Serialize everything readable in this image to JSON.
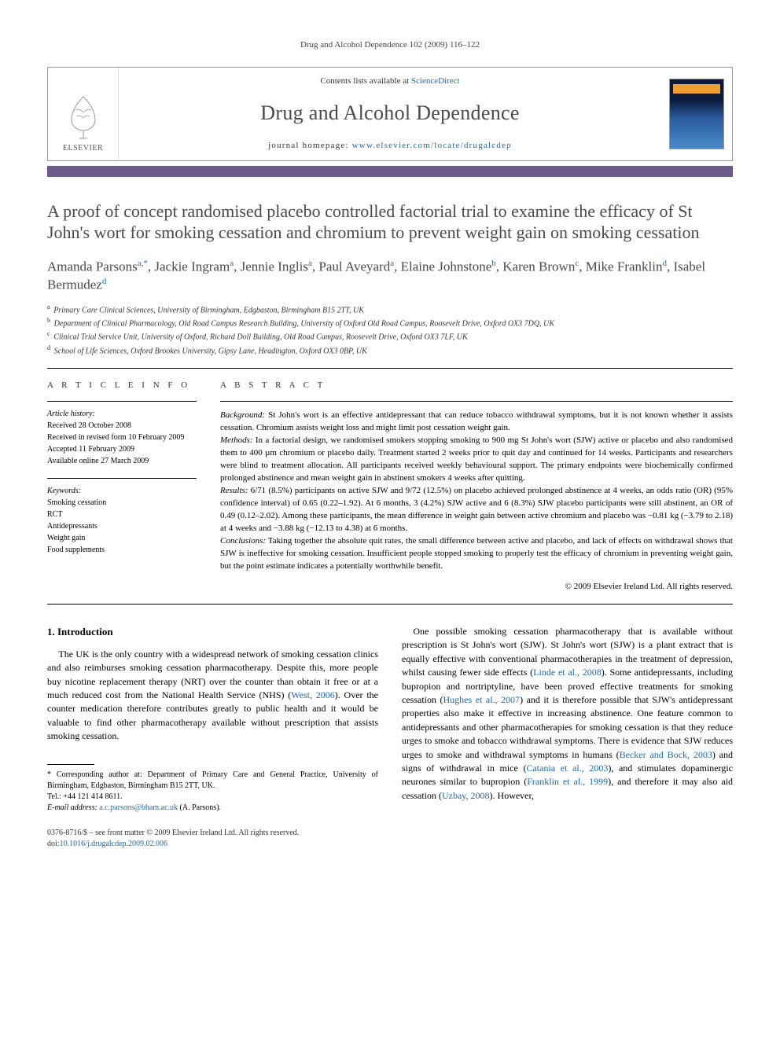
{
  "running_head": "Drug and Alcohol Dependence 102 (2009) 116–122",
  "masthead": {
    "publisher_name": "ELSEVIER",
    "contents_prefix": "Contents lists available at ",
    "contents_link": "ScienceDirect",
    "journal_name": "Drug and Alcohol Dependence",
    "homepage_prefix": "journal homepage: ",
    "homepage_link": "www.elsevier.com/locate/drugalcdep"
  },
  "title": "A proof of concept randomised placebo controlled factorial trial to examine the efficacy of St John's wort for smoking cessation and chromium to prevent weight gain on smoking cessation",
  "authors_html": "Amanda Parsons<sup>a,*</sup>, Jackie Ingram<sup>a</sup>, Jennie Inglis<sup>a</sup>, Paul Aveyard<sup>a</sup>, Elaine Johnstone<sup>b</sup>, Karen Brown<sup>c</sup>, Mike Franklin<sup>d</sup>, Isabel Bermudez<sup>d</sup>",
  "affiliations": [
    {
      "sup": "a",
      "text": "Primary Care Clinical Sciences, University of Birmingham, Edgbaston, Birmingham B15 2TT, UK"
    },
    {
      "sup": "b",
      "text": "Department of Clinical Pharmacology, Old Road Campus Research Building, University of Oxford Old Road Campus, Roosevelt Drive, Oxford OX3 7DQ, UK"
    },
    {
      "sup": "c",
      "text": "Clinical Trial Service Unit, University of Oxford, Richard Doll Building, Old Road Campus, Roosevelt Drive, Oxford OX3 7LF, UK"
    },
    {
      "sup": "d",
      "text": "School of Life Sciences, Oxford Brookes University, Gipsy Lane, Headington, Oxford OX3 0BP, UK"
    }
  ],
  "info": {
    "heading": "A R T I C L E   I N F O",
    "history_label": "Article history:",
    "history": [
      "Received 28 October 2008",
      "Received in revised form 10 February 2009",
      "Accepted 11 February 2009",
      "Available online 27 March 2009"
    ],
    "keywords_label": "Keywords:",
    "keywords": [
      "Smoking cessation",
      "RCT",
      "Antidepressants",
      "Weight gain",
      "Food supplements"
    ]
  },
  "abstract": {
    "heading": "A B S T R A C T",
    "sections": [
      {
        "label": "Background:",
        "text": " St John's wort is an effective antidepressant that can reduce tobacco withdrawal symptoms, but it is not known whether it assists cessation. Chromium assists weight loss and might limit post cessation weight gain."
      },
      {
        "label": "Methods:",
        "text": " In a factorial design, we randomised smokers stopping smoking to 900 mg St John's wort (SJW) active or placebo and also randomised them to 400 µm chromium or placebo daily. Treatment started 2 weeks prior to quit day and continued for 14 weeks. Participants and researchers were blind to treatment allocation. All participants received weekly behavioural support. The primary endpoints were biochemically confirmed prolonged abstinence and mean weight gain in abstinent smokers 4 weeks after quitting."
      },
      {
        "label": "Results:",
        "text": " 6/71 (8.5%) participants on active SJW and 9/72 (12.5%) on placebo achieved prolonged abstinence at 4 weeks, an odds ratio (OR) (95% confidence interval) of 0.65 (0.22–1.92). At 6 months, 3 (4.2%) SJW active and 6 (8.3%) SJW placebo participants were still abstinent, an OR of 0.49 (0.12–2.02). Among these participants, the mean difference in weight gain between active chromium and placebo was −0.81 kg (−3.79 to 2.18) at 4 weeks and −3.88 kg (−12.13 to 4.38) at 6 months."
      },
      {
        "label": "Conclusions:",
        "text": " Taking together the absolute quit rates, the small difference between active and placebo, and lack of effects on withdrawal shows that SJW is ineffective for smoking cessation. Insufficient people stopped smoking to properly test the efficacy of chromium in preventing weight gain, but the point estimate indicates a potentially worthwhile benefit."
      }
    ],
    "copyright": "© 2009 Elsevier Ireland Ltd. All rights reserved."
  },
  "body": {
    "section_number": "1.",
    "section_title": "Introduction",
    "left_para": "The UK is the only country with a widespread network of smoking cessation clinics and also reimburses smoking cessation pharmacotherapy. Despite this, more people buy nicotine replacement therapy (NRT) over the counter than obtain it free or at a much reduced cost from the National Health Service (NHS) (West, 2006). Over the counter medication therefore contributes greatly to public health and it would be valuable to find other pharmacotherapy available without prescription that assists smoking cessation.",
    "left_link": "West, 2006",
    "right_para_pre": "One possible smoking cessation pharmacotherapy that is available without prescription is St John's wort (SJW). St John's wort (SJW) is a plant extract that is equally effective with conventional pharmacotherapies in the treatment of depression, whilst causing fewer side effects (",
    "right_link1": "Linde et al., 2008",
    "right_para_mid1": "). Some antidepressants, including bupropion and nortriptyline, have been proved effective treatments for smoking cessation (",
    "right_link2": "Hughes et al., 2007",
    "right_para_mid2": ") and it is therefore possible that SJW's antidepressant properties also make it effective in increasing abstinence. One feature common to antidepressants and other pharmacotherapies for smoking cessation is that they reduce urges to smoke and tobacco withdrawal symptoms. There is evidence that SJW reduces urges to smoke and withdrawal symptoms in humans (",
    "right_link3": "Becker and Bock, 2003",
    "right_para_mid3": ") and signs of withdrawal in mice (",
    "right_link4": "Catania et al., 2003",
    "right_para_mid4": "), and stimulates dopaminergic neurones similar to bupropion (",
    "right_link5": "Franklin et al., 1999",
    "right_para_mid5": "), and therefore it may also aid cessation (",
    "right_link6": "Uzbay, 2008",
    "right_para_end": "). However,"
  },
  "footnotes": {
    "corr_label": "* Corresponding author at:",
    "corr_text": " Department of Primary Care and General Practice, University of Birmingham, Edgbaston, Birmingham B15 2TT, UK.",
    "tel_label": "Tel.:",
    "tel": " +44 121 414 8611.",
    "email_label": "E-mail address:",
    "email": "a.c.parsons@bham.ac.uk",
    "email_suffix": " (A. Parsons)."
  },
  "bottom": {
    "left1": "0376-8716/$ – see front matter © 2009 Elsevier Ireland Ltd. All rights reserved.",
    "left2_prefix": "doi:",
    "left2_link": "10.1016/j.drugalcdep.2009.02.006"
  },
  "colors": {
    "accent_bar": "#6b5a8a",
    "link": "#1a6bb3",
    "heading_grey": "#4a4a4a"
  }
}
